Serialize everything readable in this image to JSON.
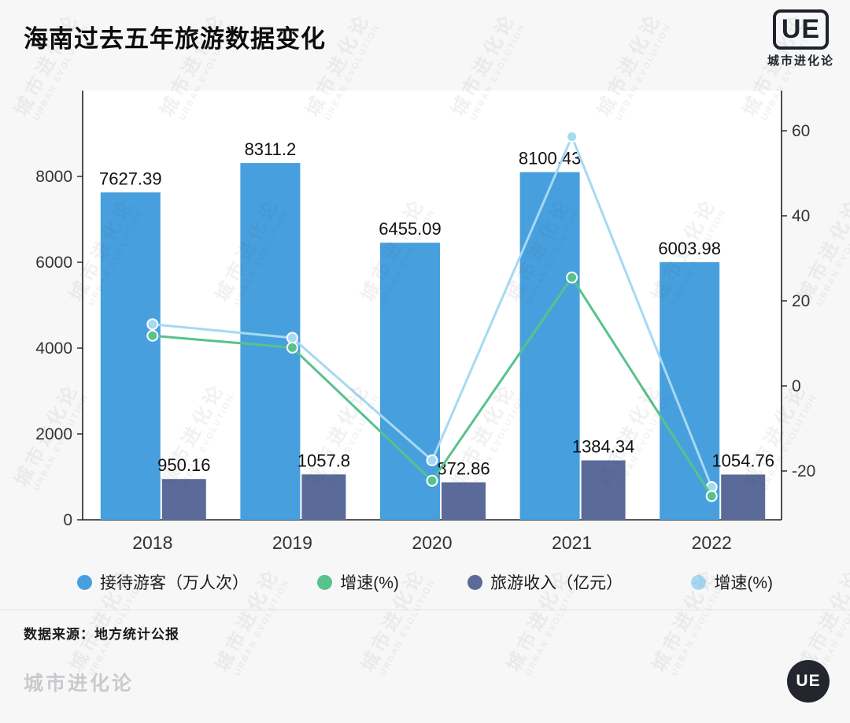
{
  "header": {
    "title": "海南过去五年旅游数据变化",
    "logo_text": "UE",
    "logo_label": "城市进化论"
  },
  "watermark": {
    "cn": "城市进化论",
    "en": "URBAN EVOLUTION"
  },
  "chart_data": {
    "type": "bar",
    "subtype": "bar-line-combo-dual-axis",
    "title": "海南过去五年旅游数据变化",
    "categories": [
      "2018",
      "2019",
      "2020",
      "2021",
      "2022"
    ],
    "series": [
      {
        "name": "接待游客（万人次）",
        "type": "bar",
        "axis": "left",
        "color": "#47a0dd",
        "values": [
          7627.39,
          8311.2,
          6455.09,
          8100.43,
          6003.98
        ],
        "labels": [
          "7627.39",
          "8311.2",
          "6455.09",
          "8100.43",
          "6003.98"
        ]
      },
      {
        "name": "旅游收入（亿元）",
        "type": "bar",
        "axis": "left",
        "color": "#5a6b99",
        "values": [
          950.16,
          1057.8,
          872.86,
          1384.34,
          1054.76
        ],
        "labels": [
          "950.16",
          "1057.8",
          "872.86",
          "1384.34",
          "1054.76"
        ]
      },
      {
        "name": "增速(%)",
        "type": "line",
        "axis": "right",
        "color": "#57c28d",
        "values": [
          11.8,
          9.0,
          -22.3,
          25.5,
          -25.9
        ]
      },
      {
        "name": "增速(%)",
        "type": "line",
        "axis": "right",
        "color": "#a6d9f2",
        "values": [
          14.5,
          11.3,
          -17.5,
          58.6,
          -23.8
        ]
      }
    ],
    "left_axis": {
      "ticks": [
        0,
        2000,
        4000,
        6000,
        8000
      ],
      "max": 10000,
      "min": 0
    },
    "right_axis": {
      "ticks": [
        -20,
        0,
        20,
        40,
        60
      ]
    },
    "grid": false,
    "legend_position": "bottom"
  },
  "legend": [
    {
      "label": "接待游客（万人次）",
      "color": "#47a0dd"
    },
    {
      "label": "增速(%)",
      "color": "#57c28d"
    },
    {
      "label": "旅游收入（亿元）",
      "color": "#5a6b99"
    },
    {
      "label": "增速(%)",
      "color": "#a6d9f2"
    }
  ],
  "footer": {
    "source": "数据来源：地方统计公报",
    "brand": "城市进化论",
    "logo_text": "UE"
  },
  "colors": {
    "visitors_bar": "#47a0dd",
    "revenue_bar": "#5a6b99",
    "visitors_growth_line": "#57c28d",
    "revenue_growth_line": "#a6d9f2",
    "background": "#f7f7f8",
    "plot_background": "#ffffff"
  }
}
